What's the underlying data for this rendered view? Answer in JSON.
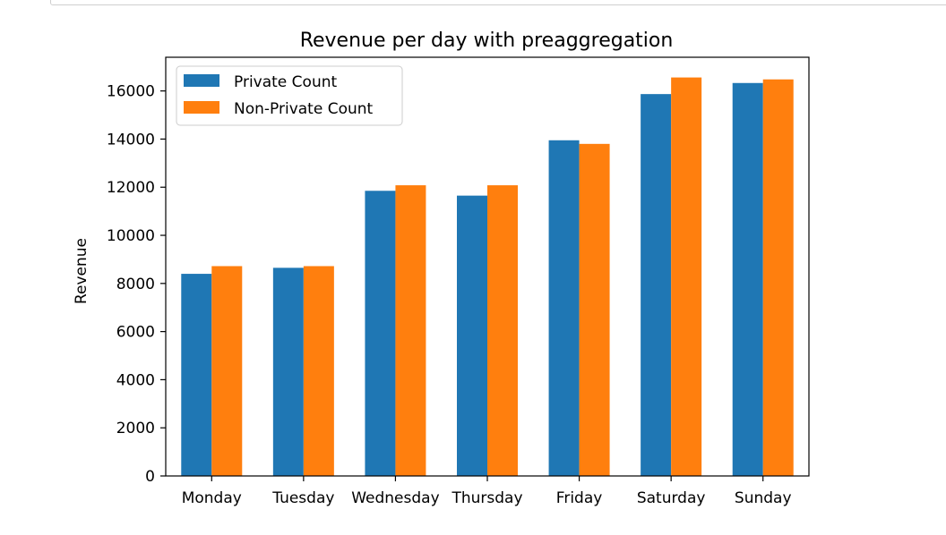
{
  "chart_data": {
    "type": "bar",
    "title": "Revenue per day with preaggregation",
    "xlabel": "",
    "ylabel": "Revenue",
    "categories": [
      "Monday",
      "Tuesday",
      "Wednesday",
      "Thursday",
      "Friday",
      "Saturday",
      "Sunday"
    ],
    "series": [
      {
        "name": "Private Count",
        "color": "#1f77b4",
        "values": [
          8400,
          8650,
          11850,
          11650,
          13950,
          15870,
          16330
        ]
      },
      {
        "name": "Non-Private Count",
        "color": "#ff7f0e",
        "values": [
          8720,
          8720,
          12080,
          12080,
          13800,
          16560,
          16480
        ]
      }
    ],
    "yticks": [
      0,
      2000,
      4000,
      6000,
      8000,
      10000,
      12000,
      14000,
      16000
    ],
    "ylim": [
      0,
      17400
    ],
    "legend": "top-left",
    "grid": false
  }
}
